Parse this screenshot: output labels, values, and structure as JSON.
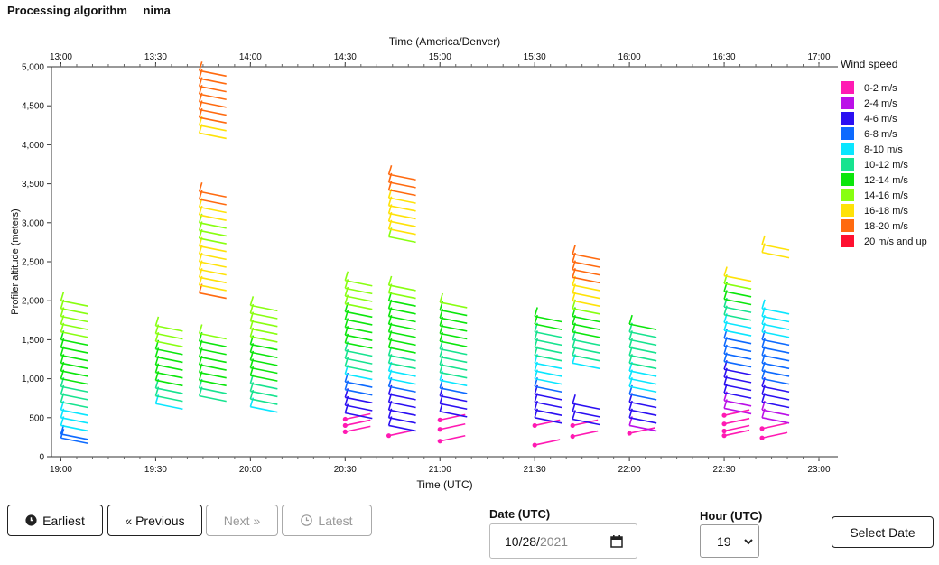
{
  "header": {
    "label": "Processing algorithm",
    "algorithm": "nima"
  },
  "chart_data": {
    "type": "wind-barbs",
    "ylabel": "Profiler altitude (meters)",
    "ylim": [
      0,
      5000
    ],
    "yticks": [
      0,
      500,
      1000,
      1500,
      2000,
      2500,
      3000,
      3500,
      4000,
      4500,
      5000
    ],
    "ytick_labels": [
      "0",
      "500",
      "1,000",
      "1,500",
      "2,000",
      "2,500",
      "3,000",
      "3,500",
      "4,000",
      "4,500",
      "5,000"
    ],
    "x_bottom": {
      "label": "Time (UTC)",
      "ticks": [
        "19:00",
        "19:30",
        "20:00",
        "20:30",
        "21:00",
        "21:30",
        "22:00",
        "22:30",
        "23:00"
      ]
    },
    "x_top": {
      "label": "Time (America/Denver)",
      "ticks": [
        "13:00",
        "13:30",
        "14:00",
        "14:30",
        "15:00",
        "15:30",
        "16:00",
        "16:30",
        "17:00"
      ]
    },
    "xlim_hours": [
      18.95,
      23.1
    ],
    "legend": {
      "title": "Wind speed",
      "entries": [
        {
          "label": "0-2 m/s",
          "color": "#ff1ab3"
        },
        {
          "label": "2-4 m/s",
          "color": "#bb10e8"
        },
        {
          "label": "4-6 m/s",
          "color": "#2b0ff2"
        },
        {
          "label": "6-8 m/s",
          "color": "#0d6aff"
        },
        {
          "label": "8-10 m/s",
          "color": "#0ae6ff"
        },
        {
          "label": "10-12 m/s",
          "color": "#16e38f"
        },
        {
          "label": "12-14 m/s",
          "color": "#0be60b"
        },
        {
          "label": "14-16 m/s",
          "color": "#88ff10"
        },
        {
          "label": "16-18 m/s",
          "color": "#ffe208"
        },
        {
          "label": "18-20 m/s",
          "color": "#ff6a0f"
        },
        {
          "label": "20 m/s and up",
          "color": "#ff1030"
        }
      ]
    },
    "profiles": [
      {
        "time": 19.0,
        "barbs": [
          [
            240,
            6
          ],
          [
            290,
            7
          ],
          [
            400,
            8
          ],
          [
            500,
            9
          ],
          [
            600,
            9
          ],
          [
            700,
            10
          ],
          [
            800,
            10
          ],
          [
            900,
            11
          ],
          [
            1000,
            12
          ],
          [
            1100,
            12
          ],
          [
            1200,
            13
          ],
          [
            1300,
            13
          ],
          [
            1400,
            13
          ],
          [
            1500,
            13
          ],
          [
            1600,
            14
          ],
          [
            1700,
            14
          ],
          [
            1800,
            15
          ],
          [
            1900,
            15
          ],
          [
            2000,
            15
          ]
        ]
      },
      {
        "time": 19.5,
        "barbs": [
          [
            680,
            9
          ],
          [
            780,
            11
          ],
          [
            880,
            11
          ],
          [
            980,
            12
          ],
          [
            1080,
            12
          ],
          [
            1180,
            13
          ],
          [
            1280,
            13
          ],
          [
            1380,
            13
          ],
          [
            1480,
            14
          ],
          [
            1580,
            14
          ],
          [
            1680,
            14
          ]
        ]
      },
      {
        "time": 19.73,
        "barbs": [
          [
            780,
            11
          ],
          [
            880,
            11
          ],
          [
            980,
            12
          ],
          [
            1080,
            12
          ],
          [
            1180,
            13
          ],
          [
            1280,
            13
          ],
          [
            1380,
            13
          ],
          [
            1480,
            13
          ],
          [
            1580,
            14
          ],
          [
            2100,
            18
          ],
          [
            2200,
            16
          ],
          [
            2300,
            17
          ],
          [
            2400,
            17
          ],
          [
            2500,
            17
          ],
          [
            2600,
            17
          ],
          [
            2700,
            16
          ],
          [
            2800,
            15
          ],
          [
            2900,
            15
          ],
          [
            3000,
            15
          ],
          [
            3100,
            16
          ],
          [
            3200,
            17
          ],
          [
            3300,
            18
          ],
          [
            3400,
            18
          ],
          [
            4150,
            17
          ],
          [
            4250,
            17
          ],
          [
            4350,
            18
          ],
          [
            4450,
            18
          ],
          [
            4550,
            18
          ],
          [
            4650,
            18
          ],
          [
            4750,
            18
          ],
          [
            4850,
            19
          ],
          [
            4950,
            19
          ]
        ]
      },
      {
        "time": 20.0,
        "barbs": [
          [
            640,
            9
          ],
          [
            740,
            10
          ],
          [
            840,
            11
          ],
          [
            940,
            11
          ],
          [
            1040,
            12
          ],
          [
            1140,
            12
          ],
          [
            1240,
            12
          ],
          [
            1340,
            13
          ],
          [
            1440,
            13
          ],
          [
            1540,
            14
          ],
          [
            1640,
            14
          ],
          [
            1740,
            14
          ],
          [
            1840,
            15
          ],
          [
            1940,
            15
          ]
        ]
      },
      {
        "time": 20.5,
        "barbs": [
          [
            320,
            1
          ],
          [
            400,
            1
          ],
          [
            480,
            1
          ],
          [
            560,
            5
          ],
          [
            660,
            5
          ],
          [
            760,
            5
          ],
          [
            860,
            6
          ],
          [
            960,
            7
          ],
          [
            1060,
            8
          ],
          [
            1160,
            10
          ],
          [
            1260,
            11
          ],
          [
            1360,
            11
          ],
          [
            1460,
            12
          ],
          [
            1560,
            12
          ],
          [
            1660,
            12
          ],
          [
            1760,
            13
          ],
          [
            1860,
            13
          ],
          [
            1960,
            14
          ],
          [
            2060,
            14
          ],
          [
            2160,
            14
          ],
          [
            2260,
            15
          ]
        ]
      },
      {
        "time": 20.73,
        "barbs": [
          [
            270,
            1
          ],
          [
            400,
            4
          ],
          [
            500,
            4
          ],
          [
            600,
            5
          ],
          [
            700,
            5
          ],
          [
            800,
            5
          ],
          [
            900,
            6
          ],
          [
            1000,
            8
          ],
          [
            1100,
            9
          ],
          [
            1200,
            11
          ],
          [
            1300,
            11
          ],
          [
            1400,
            12
          ],
          [
            1500,
            12
          ],
          [
            1600,
            12
          ],
          [
            1700,
            13
          ],
          [
            1800,
            13
          ],
          [
            1900,
            13
          ],
          [
            2000,
            13
          ],
          [
            2100,
            14
          ],
          [
            2200,
            15
          ],
          [
            2820,
            15
          ],
          [
            2920,
            16
          ],
          [
            3020,
            16
          ],
          [
            3120,
            17
          ],
          [
            3220,
            17
          ],
          [
            3320,
            17
          ],
          [
            3420,
            18
          ],
          [
            3520,
            18
          ],
          [
            3620,
            19
          ]
        ]
      },
      {
        "time": 21.0,
        "barbs": [
          [
            200,
            1
          ],
          [
            350,
            1
          ],
          [
            470,
            1
          ],
          [
            580,
            4
          ],
          [
            680,
            5
          ],
          [
            780,
            5
          ],
          [
            880,
            6
          ],
          [
            980,
            8
          ],
          [
            1080,
            10
          ],
          [
            1180,
            10
          ],
          [
            1280,
            11
          ],
          [
            1380,
            11
          ],
          [
            1480,
            12
          ],
          [
            1580,
            12
          ],
          [
            1680,
            12
          ],
          [
            1780,
            13
          ],
          [
            1880,
            13
          ],
          [
            1980,
            14
          ]
        ]
      },
      {
        "time": 21.5,
        "barbs": [
          [
            150,
            1
          ],
          [
            400,
            1
          ],
          [
            500,
            4
          ],
          [
            600,
            5
          ],
          [
            700,
            5
          ],
          [
            800,
            5
          ],
          [
            900,
            6
          ],
          [
            1000,
            8
          ],
          [
            1100,
            8
          ],
          [
            1200,
            9
          ],
          [
            1300,
            10
          ],
          [
            1400,
            10
          ],
          [
            1500,
            11
          ],
          [
            1600,
            11
          ],
          [
            1700,
            12
          ],
          [
            1800,
            13
          ]
        ]
      },
      {
        "time": 21.7,
        "barbs": [
          [
            260,
            1
          ],
          [
            400,
            1
          ],
          [
            480,
            5
          ],
          [
            580,
            5
          ],
          [
            680,
            5
          ],
          [
            1200,
            9
          ],
          [
            1300,
            10
          ],
          [
            1400,
            10
          ],
          [
            1500,
            11
          ],
          [
            1600,
            12
          ],
          [
            1700,
            12
          ],
          [
            1800,
            13
          ],
          [
            1900,
            14
          ],
          [
            2000,
            16
          ],
          [
            2100,
            17
          ],
          [
            2200,
            17
          ],
          [
            2300,
            18
          ],
          [
            2400,
            18
          ],
          [
            2500,
            19
          ],
          [
            2600,
            19
          ]
        ]
      },
      {
        "time": 22.0,
        "barbs": [
          [
            300,
            1
          ],
          [
            400,
            2
          ],
          [
            500,
            4
          ],
          [
            600,
            4
          ],
          [
            700,
            5
          ],
          [
            800,
            6
          ],
          [
            900,
            8
          ],
          [
            1000,
            8
          ],
          [
            1100,
            9
          ],
          [
            1200,
            10
          ],
          [
            1300,
            10
          ],
          [
            1400,
            10
          ],
          [
            1500,
            11
          ],
          [
            1600,
            11
          ],
          [
            1700,
            12
          ]
        ]
      },
      {
        "time": 22.5,
        "barbs": [
          [
            270,
            1
          ],
          [
            330,
            1
          ],
          [
            420,
            1
          ],
          [
            530,
            1
          ],
          [
            620,
            2
          ],
          [
            720,
            3
          ],
          [
            820,
            4
          ],
          [
            920,
            5
          ],
          [
            1020,
            5
          ],
          [
            1120,
            5
          ],
          [
            1220,
            6
          ],
          [
            1320,
            6
          ],
          [
            1420,
            7
          ],
          [
            1520,
            7
          ],
          [
            1620,
            8
          ],
          [
            1720,
            9
          ],
          [
            1820,
            10
          ],
          [
            1920,
            11
          ],
          [
            2020,
            12
          ],
          [
            2120,
            13
          ],
          [
            2220,
            14
          ],
          [
            2320,
            16
          ]
        ]
      },
      {
        "time": 22.7,
        "barbs": [
          [
            240,
            1
          ],
          [
            360,
            1
          ],
          [
            500,
            2
          ],
          [
            600,
            3
          ],
          [
            700,
            4
          ],
          [
            800,
            5
          ],
          [
            900,
            5
          ],
          [
            1000,
            6
          ],
          [
            1100,
            6
          ],
          [
            1200,
            6
          ],
          [
            1300,
            6
          ],
          [
            1400,
            6
          ],
          [
            1500,
            7
          ],
          [
            1600,
            8
          ],
          [
            1700,
            8
          ],
          [
            1800,
            8
          ],
          [
            1900,
            9
          ],
          [
            2620,
            16
          ],
          [
            2720,
            16
          ]
        ]
      }
    ]
  },
  "buttons": {
    "earliest": "Earliest",
    "previous": "« Previous",
    "next": "Next »",
    "latest": "Latest",
    "select_date": "Select Date"
  },
  "controls": {
    "date_label": "Date (UTC)",
    "date_month_day": "10/28/",
    "date_year": "2021",
    "hour_label": "Hour (UTC)",
    "hour_value": "19"
  }
}
